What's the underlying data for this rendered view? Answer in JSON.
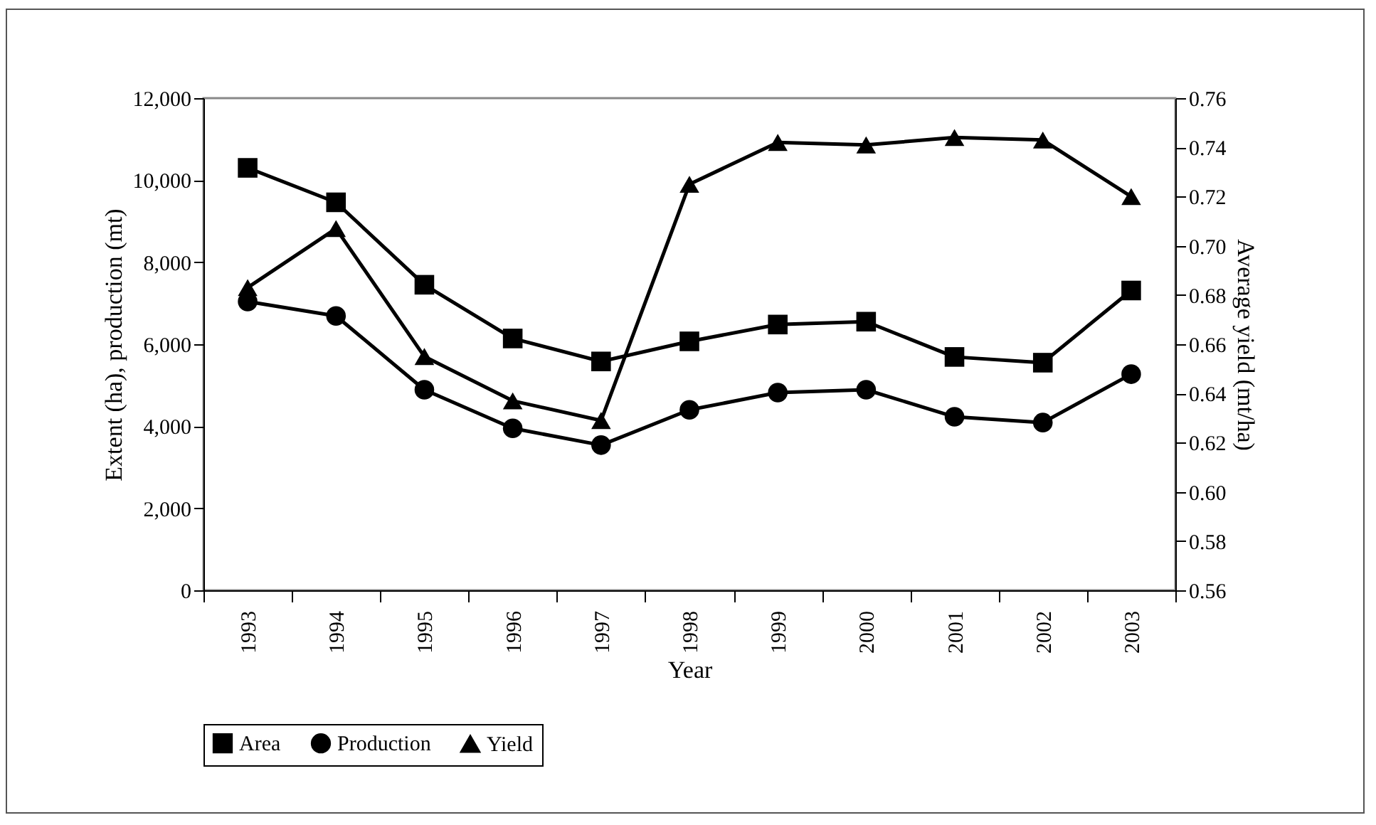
{
  "chart_data": {
    "type": "line",
    "categories": [
      "1993",
      "1994",
      "1995",
      "1996",
      "1997",
      "1998",
      "1999",
      "2000",
      "2001",
      "2002",
      "2003"
    ],
    "xlabel": "Year",
    "ylabel": "Extent (ha), production (mt)",
    "y2label": "Average yield (mt/ha)",
    "ylim": [
      0,
      12000
    ],
    "yticks": [
      {
        "value": 0,
        "label": "0"
      },
      {
        "value": 2000,
        "label": "2,000"
      },
      {
        "value": 4000,
        "label": "4,000"
      },
      {
        "value": 6000,
        "label": "6,000"
      },
      {
        "value": 8000,
        "label": "8,000"
      },
      {
        "value": 10000,
        "label": "10,000"
      },
      {
        "value": 12000,
        "label": "12,000"
      }
    ],
    "y2lim": [
      0.56,
      0.76
    ],
    "y2ticks": [
      {
        "value": 0.56,
        "label": "0.56"
      },
      {
        "value": 0.58,
        "label": "0.58"
      },
      {
        "value": 0.6,
        "label": "0.60"
      },
      {
        "value": 0.62,
        "label": "0.62"
      },
      {
        "value": 0.64,
        "label": "0.64"
      },
      {
        "value": 0.66,
        "label": "0.66"
      },
      {
        "value": 0.68,
        "label": "0.68"
      },
      {
        "value": 0.7,
        "label": "0.70"
      },
      {
        "value": 0.72,
        "label": "0.72"
      },
      {
        "value": 0.74,
        "label": "0.74"
      },
      {
        "value": 0.76,
        "label": "0.76"
      }
    ],
    "grid": false,
    "legend": "bottom",
    "series": [
      {
        "name": "Area",
        "color": "#000000",
        "marker": "square",
        "values": [
          10300,
          9460,
          7450,
          6140,
          5580,
          6070,
          6480,
          6550,
          5690,
          5550,
          7310
        ]
      },
      {
        "name": "Production",
        "color": "#000000",
        "marker": "circle",
        "values": [
          7040,
          6690,
          4890,
          3950,
          3540,
          4400,
          4820,
          4890,
          4230,
          4090,
          5270
        ]
      },
      {
        "name": "Yield",
        "color": "#000000",
        "marker": "triangle",
        "axis": "y2",
        "values": [
          0.683,
          0.707,
          0.655,
          0.637,
          0.629,
          0.725,
          0.742,
          0.741,
          0.744,
          0.743,
          0.72
        ]
      }
    ]
  }
}
